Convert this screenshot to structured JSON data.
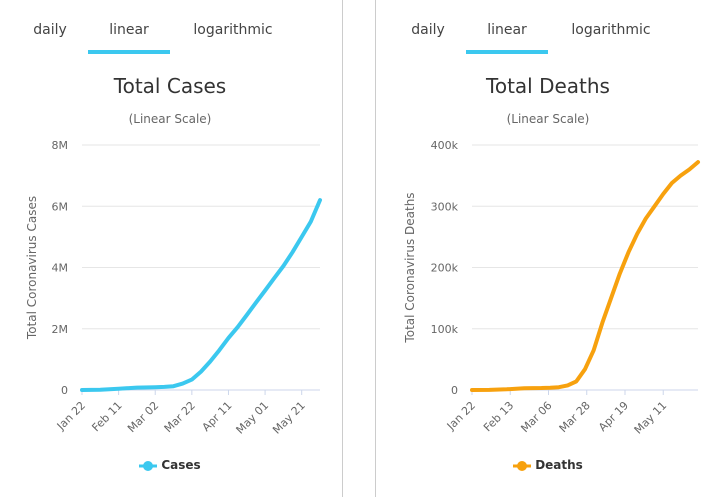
{
  "tabs": [
    "daily",
    "linear",
    "logarithmic"
  ],
  "active_tab_index": 1,
  "colors": {
    "cases": "#3bc8ef",
    "deaths": "#f7a10e",
    "grid": "#e6e6e6",
    "tab_active": "#3bc8ef"
  },
  "chart_data": [
    {
      "type": "line",
      "title": "Total Cases",
      "subtitle": "(Linear Scale)",
      "ylabel": "Total Coronavirus Cases",
      "xlabel": "",
      "legend": "Cases",
      "legend_position": "bottom-center",
      "ylim": [
        0,
        8000000
      ],
      "yticks": [
        0,
        2000000,
        4000000,
        6000000,
        8000000
      ],
      "ytick_labels": [
        "0",
        "2M",
        "4M",
        "6M",
        "8M"
      ],
      "x_range_days": [
        0,
        130
      ],
      "xticks": [
        0,
        20,
        40,
        60,
        80,
        100,
        120
      ],
      "xtick_labels": [
        "Jan 22",
        "Feb 11",
        "Mar 02",
        "Mar 22",
        "Apr 11",
        "May 01",
        "May 21"
      ],
      "series": [
        {
          "name": "Cases",
          "x": [
            0,
            10,
            20,
            30,
            40,
            45,
            50,
            55,
            60,
            65,
            70,
            75,
            80,
            85,
            90,
            95,
            100,
            105,
            110,
            115,
            120,
            125,
            130
          ],
          "values": [
            555,
            9900,
            43100,
            80000,
            90000,
            102000,
            125000,
            210000,
            340000,
            600000,
            930000,
            1300000,
            1700000,
            2050000,
            2450000,
            2850000,
            3250000,
            3650000,
            4050000,
            4500000,
            5000000,
            5500000,
            6200000
          ]
        }
      ]
    },
    {
      "type": "line",
      "title": "Total Deaths",
      "subtitle": "(Linear Scale)",
      "ylabel": "Total Coronavirus Deaths",
      "xlabel": "",
      "legend": "Deaths",
      "legend_position": "bottom-center",
      "ylim": [
        0,
        400000
      ],
      "yticks": [
        0,
        100000,
        200000,
        300000,
        400000
      ],
      "ytick_labels": [
        "0",
        "100k",
        "200k",
        "300k",
        "400k"
      ],
      "x_range_days": [
        0,
        130
      ],
      "xticks": [
        0,
        22,
        44,
        66,
        88,
        110
      ],
      "xtick_labels": [
        "Jan 22",
        "Feb 13",
        "Mar 06",
        "Mar 28",
        "Apr 19",
        "May 11"
      ],
      "series": [
        {
          "name": "Deaths",
          "x": [
            0,
            10,
            20,
            30,
            40,
            45,
            50,
            55,
            60,
            65,
            70,
            75,
            80,
            85,
            90,
            95,
            100,
            105,
            110,
            115,
            120,
            125,
            130
          ],
          "values": [
            17,
            200,
            1100,
            2900,
            3300,
            3800,
            4600,
            7500,
            14000,
            34000,
            65000,
            110000,
            150000,
            190000,
            225000,
            255000,
            280000,
            300000,
            320000,
            338000,
            350000,
            360000,
            372000
          ]
        }
      ]
    }
  ]
}
